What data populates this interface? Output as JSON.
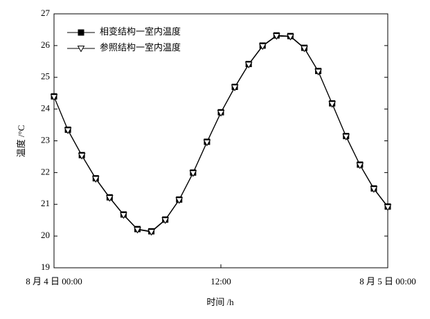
{
  "chart_data": {
    "type": "line",
    "x": [
      0,
      1,
      2,
      3,
      4,
      5,
      6,
      7,
      8,
      9,
      10,
      11,
      12,
      13,
      14,
      15,
      16,
      17,
      18,
      19,
      20,
      21,
      22,
      23,
      24
    ],
    "series": [
      {
        "name": "相变结构一室内温度",
        "color": "#000000",
        "marker": "square",
        "values": [
          24.4,
          23.35,
          22.55,
          21.82,
          21.22,
          20.68,
          20.22,
          20.15,
          20.52,
          21.15,
          22.0,
          22.97,
          23.9,
          24.7,
          25.42,
          26.0,
          26.32,
          26.3,
          25.93,
          25.2,
          24.18,
          23.15,
          22.25,
          21.5,
          20.93
        ]
      },
      {
        "name": "参照结构一室内温度",
        "color": "#000000",
        "marker": "triangle-down",
        "values": [
          24.38,
          23.33,
          22.53,
          21.8,
          21.2,
          20.66,
          20.2,
          20.13,
          20.5,
          21.13,
          21.98,
          22.95,
          23.88,
          24.68,
          25.4,
          25.98,
          26.3,
          26.28,
          25.91,
          25.18,
          24.16,
          23.13,
          22.23,
          21.48,
          20.91
        ]
      }
    ],
    "xlim": [
      0,
      24
    ],
    "xticks": [
      {
        "value": 0,
        "label": "8 月 4 日 00:00"
      },
      {
        "value": 12,
        "label": "12:00"
      },
      {
        "value": 24,
        "label": "8 月 5 日 00:00"
      }
    ],
    "ylim": [
      19,
      27
    ],
    "yticks": [
      19,
      20,
      21,
      22,
      23,
      24,
      25,
      26,
      27
    ],
    "x_label": "时间 /h",
    "y_label": "温度 /°C",
    "legend": "top-left"
  }
}
